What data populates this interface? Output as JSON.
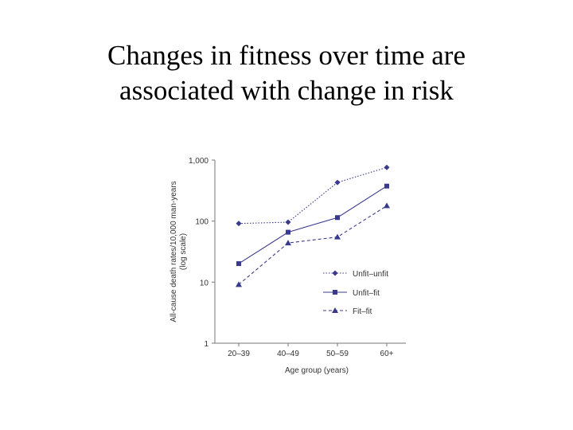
{
  "slide": {
    "title_line1": "Changes in fitness over time are",
    "title_line2": "associated with change in risk"
  },
  "chart_data": {
    "type": "line",
    "title": "",
    "xlabel": "Age group (years)",
    "ylabel_line1": "All-cause death rates/10,000 man-years",
    "ylabel_line2": "(log scale)",
    "yscale": "log",
    "ylim": [
      1,
      1000
    ],
    "ytick_values": [
      1,
      10,
      100,
      1000
    ],
    "ytick_labels": [
      "1",
      "10",
      "100",
      "1,000"
    ],
    "categories": [
      "20–39",
      "40–49",
      "50–59",
      "60+"
    ],
    "grid": false,
    "legend_position": "bottom-right",
    "series": [
      {
        "name": "Unfit–unfit",
        "marker": "diamond",
        "line_style": "dotted",
        "color": "#3a3a8c",
        "values": [
          100,
          105,
          470,
          830
        ]
      },
      {
        "name": "Unfit–fit",
        "marker": "square",
        "line_style": "solid",
        "color": "#3a3a8c",
        "values": [
          22,
          72,
          125,
          410
        ]
      },
      {
        "name": "Fit–fit",
        "marker": "triangle",
        "line_style": "dashed",
        "color": "#3a3a8c",
        "values": [
          10,
          48,
          60,
          195
        ]
      }
    ]
  }
}
